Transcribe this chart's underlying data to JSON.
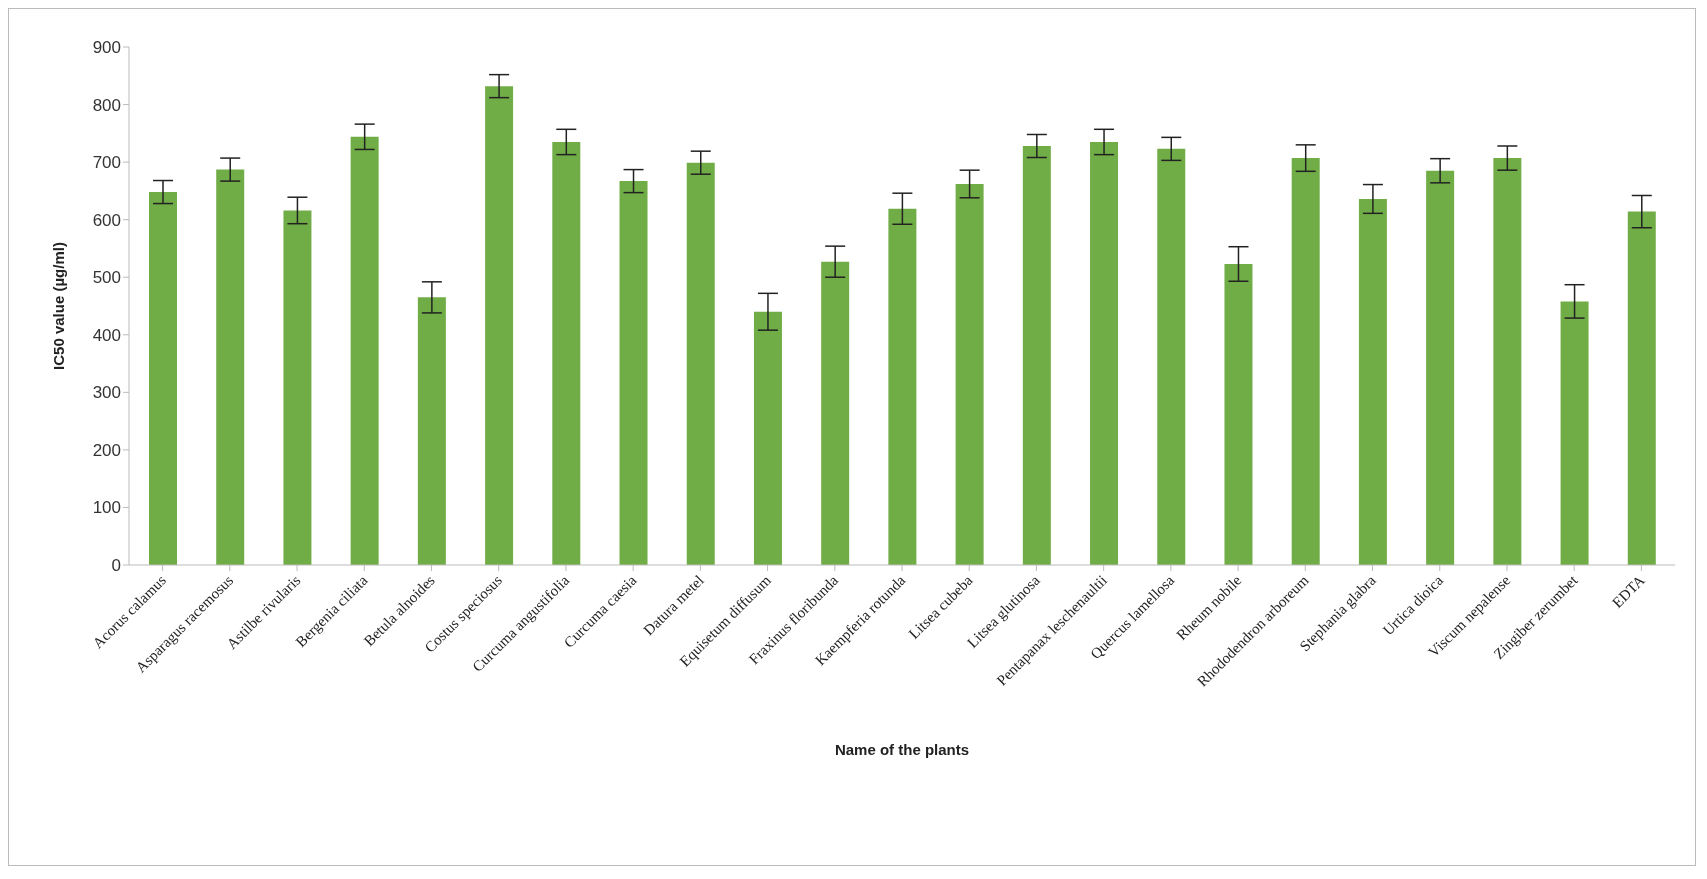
{
  "chart_data": {
    "type": "bar",
    "xlabel": "Name of the plants",
    "ylabel": "IC50 value (µg/ml)",
    "categories": [
      "Acorus calamus",
      "Asparagus racemosus",
      "Astilbe rivularis",
      "Bergenia ciliata",
      "Betula alnoides",
      "Costus speciosus",
      "Curcuma angustifolia",
      "Curcuma caesia",
      "Datura metel",
      "Equisetum diffusum",
      "Fraxinus floribunda",
      "Kaempferia rotunda",
      "Litsea cubeba",
      "Litsea glutinosa",
      "Pentapanax leschenaultii",
      "Quercus lamellosa",
      "Rheum nobile",
      "Rhododendron arboreum",
      "Stephania glabra",
      "Urtica dioica",
      "Viscum nepalense",
      "Zingiber zerumbet",
      "EDTA"
    ],
    "values": [
      648,
      687,
      616,
      744,
      465,
      832,
      735,
      667,
      699,
      440,
      527,
      619,
      662,
      728,
      735,
      723,
      523,
      707,
      636,
      685,
      707,
      458,
      614
    ],
    "errors": [
      20,
      20,
      23,
      22,
      27,
      20,
      22,
      20,
      20,
      32,
      27,
      27,
      24,
      20,
      22,
      20,
      30,
      23,
      25,
      21,
      21,
      29,
      28
    ],
    "color": "#70ad47",
    "ylim": [
      0,
      900
    ],
    "yticks": [
      0,
      100,
      200,
      300,
      400,
      500,
      600,
      700,
      800,
      900
    ]
  }
}
